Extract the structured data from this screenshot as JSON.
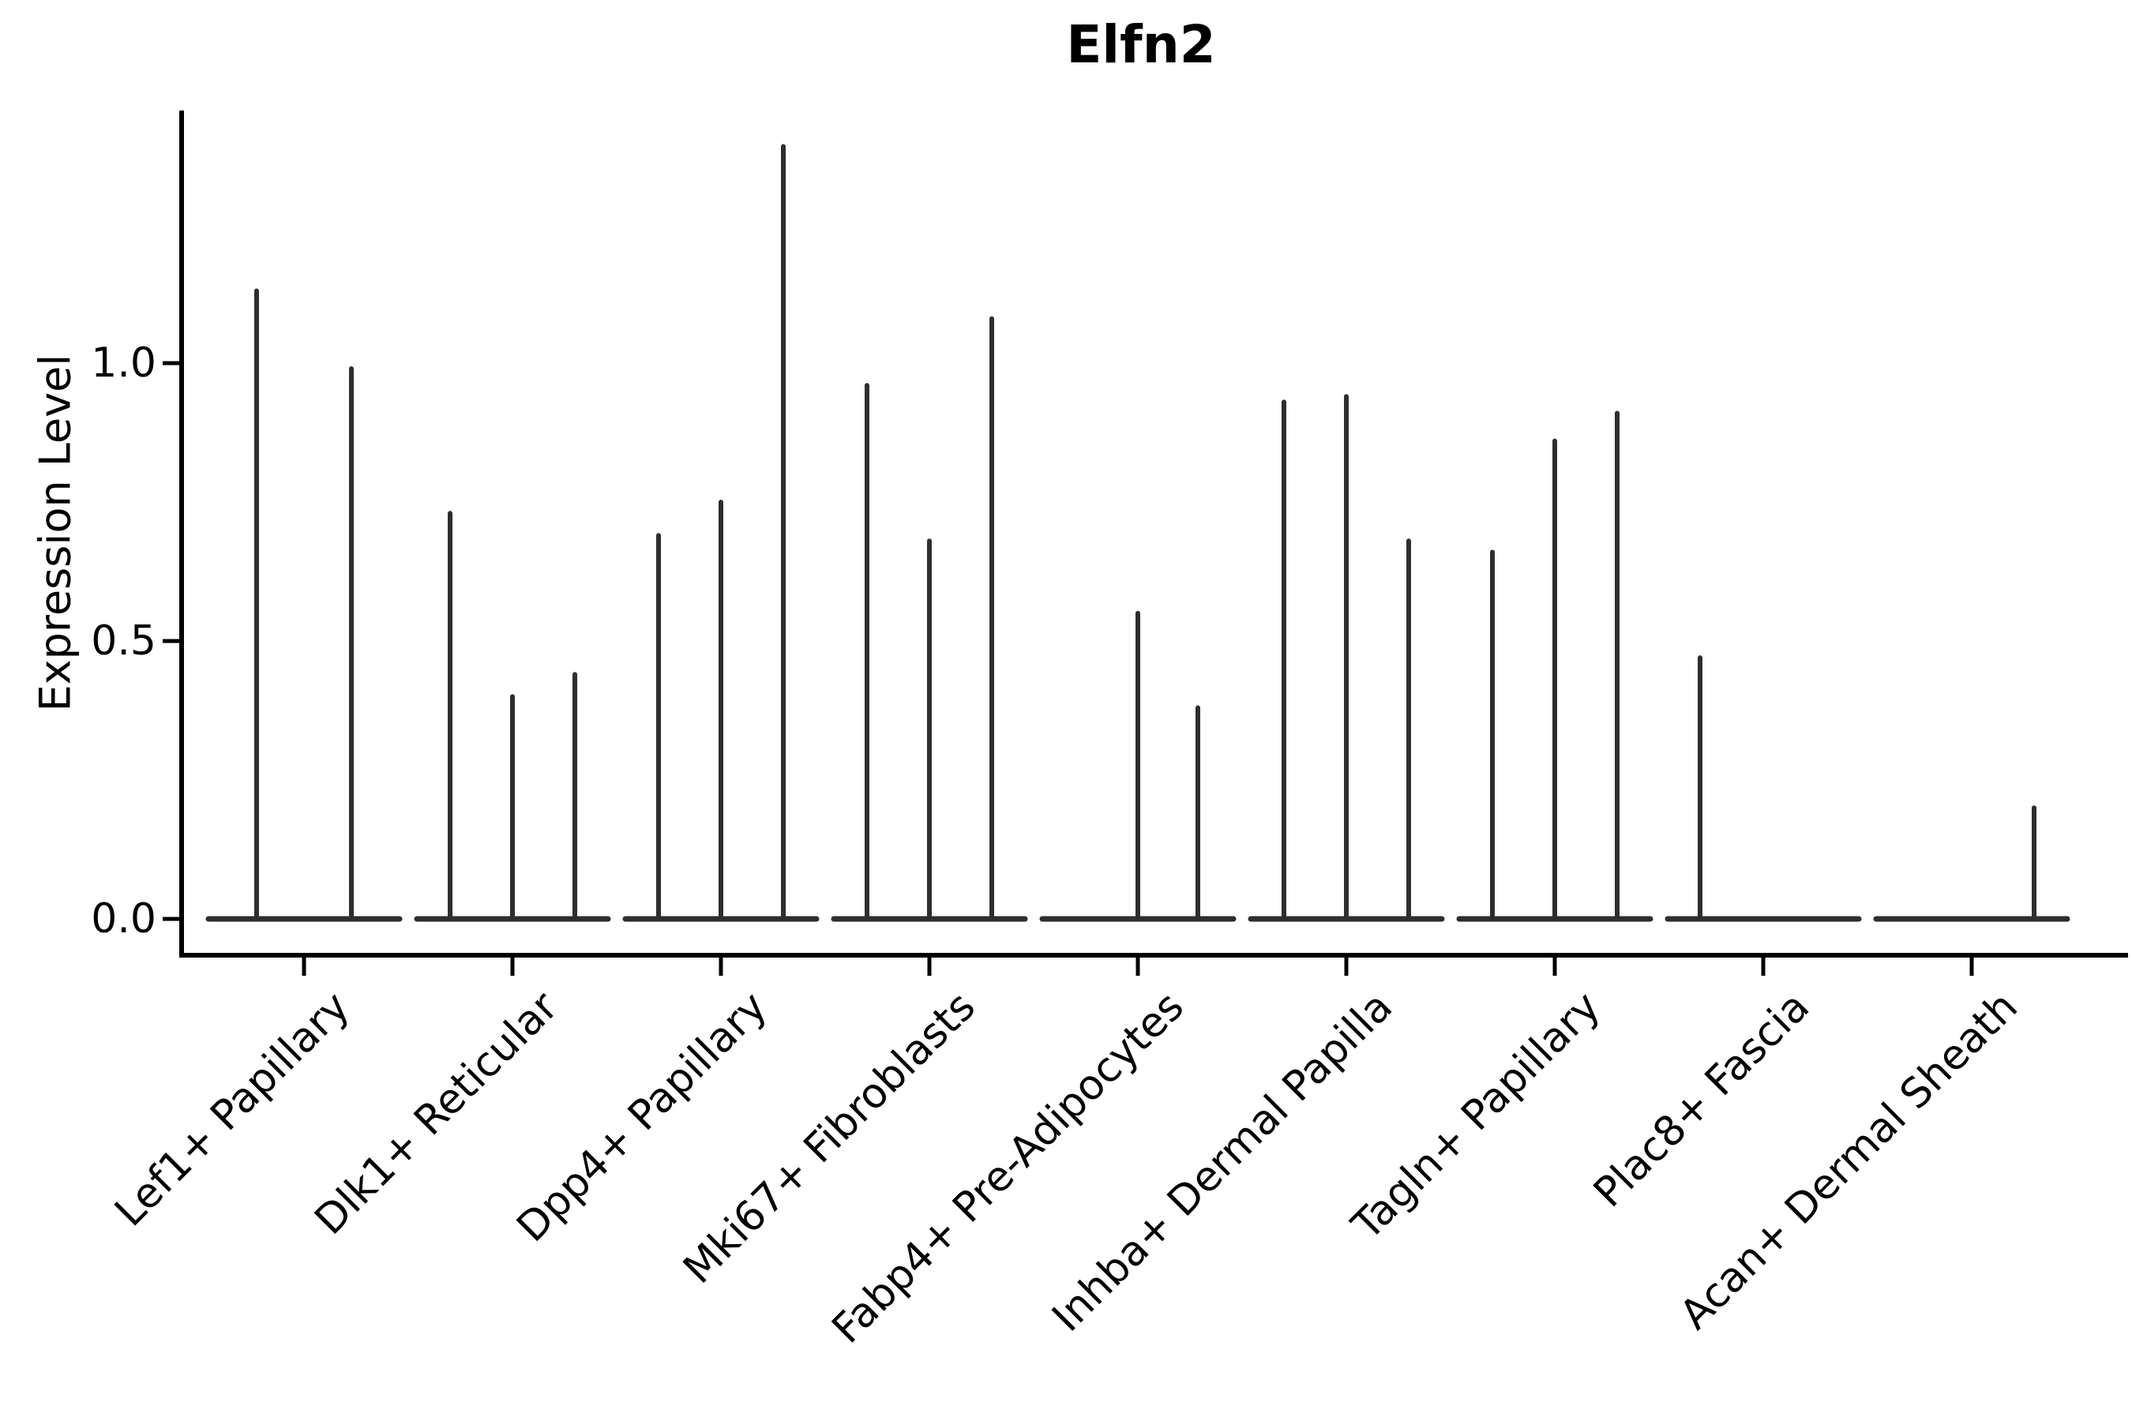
{
  "chart_data": {
    "type": "violin",
    "title": "Elfn2",
    "ylabel": "Expression Level",
    "xlabel": "",
    "legend": null,
    "grid": false,
    "ylim": [
      0,
      1.45
    ],
    "ytick_values": [
      0.0,
      0.5,
      1.0
    ],
    "ytick_labels": [
      "0.0",
      "0.5",
      "1.0"
    ],
    "categories": [
      "Lef1+ Papillary",
      "Dlk1+ Reticular",
      "Dpp4+ Papillary",
      "Mki67+ Fibroblasts",
      "Fabp4+ Pre-Adipocytes",
      "Inhba+ Dermal Papilla",
      "Tagln+ Papillary",
      "Plac8+ Fascia",
      "Acan+ Dermal Sheath"
    ],
    "description": "Thin spike-shaped violins: expression is mostly 0 in every cluster (wide flat base at 0) with a narrow spike up to the maximum expression value of the few expressing cells. Each category holds 2-3 dodged violins; violins with no expressing cells are flat at 0.",
    "groups": [
      {
        "category": "Lef1+ Papillary",
        "violins": [
          {
            "dx": -60,
            "max": 1.13
          },
          {
            "dx": 60,
            "max": 0.99
          }
        ]
      },
      {
        "category": "Dlk1+ Reticular",
        "violins": [
          {
            "dx": -79,
            "max": 0.73
          },
          {
            "dx": 0,
            "max": 0.4
          },
          {
            "dx": 79,
            "max": 0.44
          }
        ]
      },
      {
        "category": "Dpp4+ Papillary",
        "violins": [
          {
            "dx": -79,
            "max": 0.69
          },
          {
            "dx": 0,
            "max": 0.75
          },
          {
            "dx": 79,
            "max": 1.39
          }
        ]
      },
      {
        "category": "Mki67+ Fibroblasts",
        "violins": [
          {
            "dx": -79,
            "max": 0.96
          },
          {
            "dx": 0,
            "max": 0.68
          },
          {
            "dx": 79,
            "max": 1.08
          }
        ]
      },
      {
        "category": "Fabp4+ Pre-Adipocytes",
        "violins": [
          {
            "dx": 0,
            "max": 0.55
          },
          {
            "dx": 76,
            "max": 0.38
          }
        ]
      },
      {
        "category": "Inhba+ Dermal Papilla",
        "violins": [
          {
            "dx": -79,
            "max": 0.93
          },
          {
            "dx": 0,
            "max": 0.94
          },
          {
            "dx": 79,
            "max": 0.68
          }
        ]
      },
      {
        "category": "Tagln+ Papillary",
        "violins": [
          {
            "dx": -79,
            "max": 0.66
          },
          {
            "dx": 0,
            "max": 0.86
          },
          {
            "dx": 79,
            "max": 0.91
          }
        ]
      },
      {
        "category": "Plac8+ Fascia",
        "violins": [
          {
            "dx": -80,
            "max": 0.47
          }
        ]
      },
      {
        "category": "Acan+ Dermal Sheath",
        "violins": [
          {
            "dx": 79,
            "max": 0.2
          }
        ]
      }
    ],
    "colors": {
      "violin_stroke": "#2e2e2e",
      "axis": "#000000",
      "background": "#ffffff",
      "text": "#000000"
    }
  }
}
